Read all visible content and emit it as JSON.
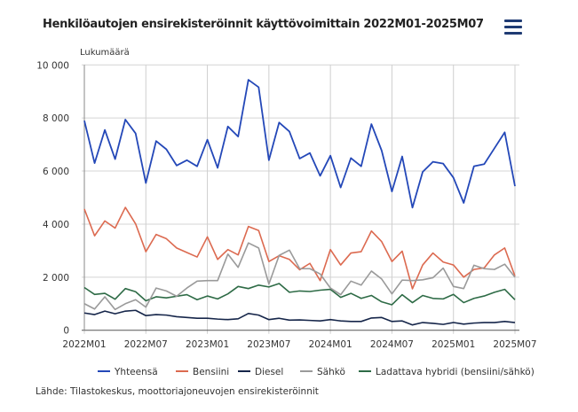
{
  "title": "Henkilöautojen ensirekisteröinnit käyttövoimittain 2022M01-2025M07",
  "menu_icon": "hamburger-menu-icon",
  "source": "Lähde: Tilastokeskus, moottoriajoneuvojen ensirekisteröinnit",
  "chart_data": {
    "type": "line",
    "title": "Henkilöautojen ensirekisteröinnit käyttövoimittain 2022M01-2025M07",
    "ylabel": "Lukumäärä",
    "ylim": [
      0,
      10000
    ],
    "yticks": [
      0,
      2000,
      4000,
      6000,
      8000,
      10000
    ],
    "ytick_labels": [
      "0",
      "2 000",
      "4 000",
      "6 000",
      "8 000",
      "10 000"
    ],
    "xtick_labels": [
      "2022M01",
      "2022M07",
      "2023M01",
      "2023M07",
      "2024M01",
      "2024M07",
      "2025M01",
      "2025M07"
    ],
    "grid": true,
    "legend": "bottom",
    "x": [
      "2022M01",
      "2022M02",
      "2022M03",
      "2022M04",
      "2022M05",
      "2022M06",
      "2022M07",
      "2022M08",
      "2022M09",
      "2022M10",
      "2022M11",
      "2022M12",
      "2023M01",
      "2023M02",
      "2023M03",
      "2023M04",
      "2023M05",
      "2023M06",
      "2023M07",
      "2023M08",
      "2023M09",
      "2023M10",
      "2023M11",
      "2023M12",
      "2024M01",
      "2024M02",
      "2024M03",
      "2024M04",
      "2024M05",
      "2024M06",
      "2024M07",
      "2024M08",
      "2024M09",
      "2024M10",
      "2024M11",
      "2024M12",
      "2025M01",
      "2025M02",
      "2025M03",
      "2025M04",
      "2025M05",
      "2025M06",
      "2025M07"
    ],
    "series": [
      {
        "name": "Yhteensä",
        "color": "#2448b8",
        "values": [
          7900,
          6300,
          7550,
          6450,
          7940,
          7420,
          5550,
          7130,
          6820,
          6210,
          6410,
          6180,
          7180,
          6120,
          7680,
          7300,
          9440,
          9160,
          6410,
          7830,
          7490,
          6470,
          6680,
          5820,
          6580,
          5380,
          6490,
          6180,
          7770,
          6770,
          5230,
          6550,
          4620,
          5970,
          6350,
          6280,
          5750,
          4800,
          6180,
          6260,
          6860,
          7460,
          5430
        ]
      },
      {
        "name": "Bensiini",
        "color": "#dc6a50",
        "values": [
          4570,
          3560,
          4120,
          3850,
          4630,
          4010,
          2960,
          3610,
          3450,
          3100,
          2930,
          2760,
          3520,
          2670,
          3040,
          2840,
          3910,
          3760,
          2590,
          2810,
          2670,
          2280,
          2520,
          1870,
          3040,
          2460,
          2910,
          2960,
          3740,
          3340,
          2590,
          2980,
          1560,
          2460,
          2910,
          2570,
          2460,
          2000,
          2290,
          2350,
          2840,
          3100,
          2040
        ]
      },
      {
        "name": "Diesel",
        "color": "#16264a",
        "values": [
          650,
          590,
          720,
          620,
          720,
          750,
          550,
          590,
          570,
          510,
          480,
          450,
          450,
          420,
          400,
          430,
          630,
          570,
          400,
          450,
          380,
          390,
          370,
          350,
          400,
          350,
          330,
          330,
          460,
          480,
          330,
          350,
          200,
          290,
          260,
          220,
          290,
          230,
          270,
          290,
          290,
          330,
          290
        ]
      },
      {
        "name": "Sähkö",
        "color": "#9a9a9a",
        "values": [
          1000,
          800,
          1260,
          780,
          1000,
          1150,
          870,
          1590,
          1480,
          1280,
          1590,
          1850,
          1870,
          1870,
          2870,
          2370,
          3290,
          3100,
          1740,
          2820,
          3020,
          2320,
          2320,
          2120,
          1590,
          1340,
          1850,
          1700,
          2230,
          1930,
          1370,
          1890,
          1870,
          1900,
          1980,
          2340,
          1650,
          1570,
          2450,
          2320,
          2290,
          2490,
          2000
        ]
      },
      {
        "name": "Ladattava hybridi (bensiini/sähkö)",
        "color": "#2e6b46",
        "values": [
          1610,
          1350,
          1390,
          1170,
          1570,
          1450,
          1110,
          1260,
          1220,
          1280,
          1340,
          1150,
          1290,
          1180,
          1370,
          1650,
          1570,
          1700,
          1630,
          1760,
          1430,
          1480,
          1460,
          1510,
          1540,
          1240,
          1390,
          1200,
          1310,
          1070,
          960,
          1340,
          1040,
          1310,
          1200,
          1180,
          1350,
          1040,
          1200,
          1290,
          1430,
          1540,
          1150
        ]
      }
    ]
  }
}
